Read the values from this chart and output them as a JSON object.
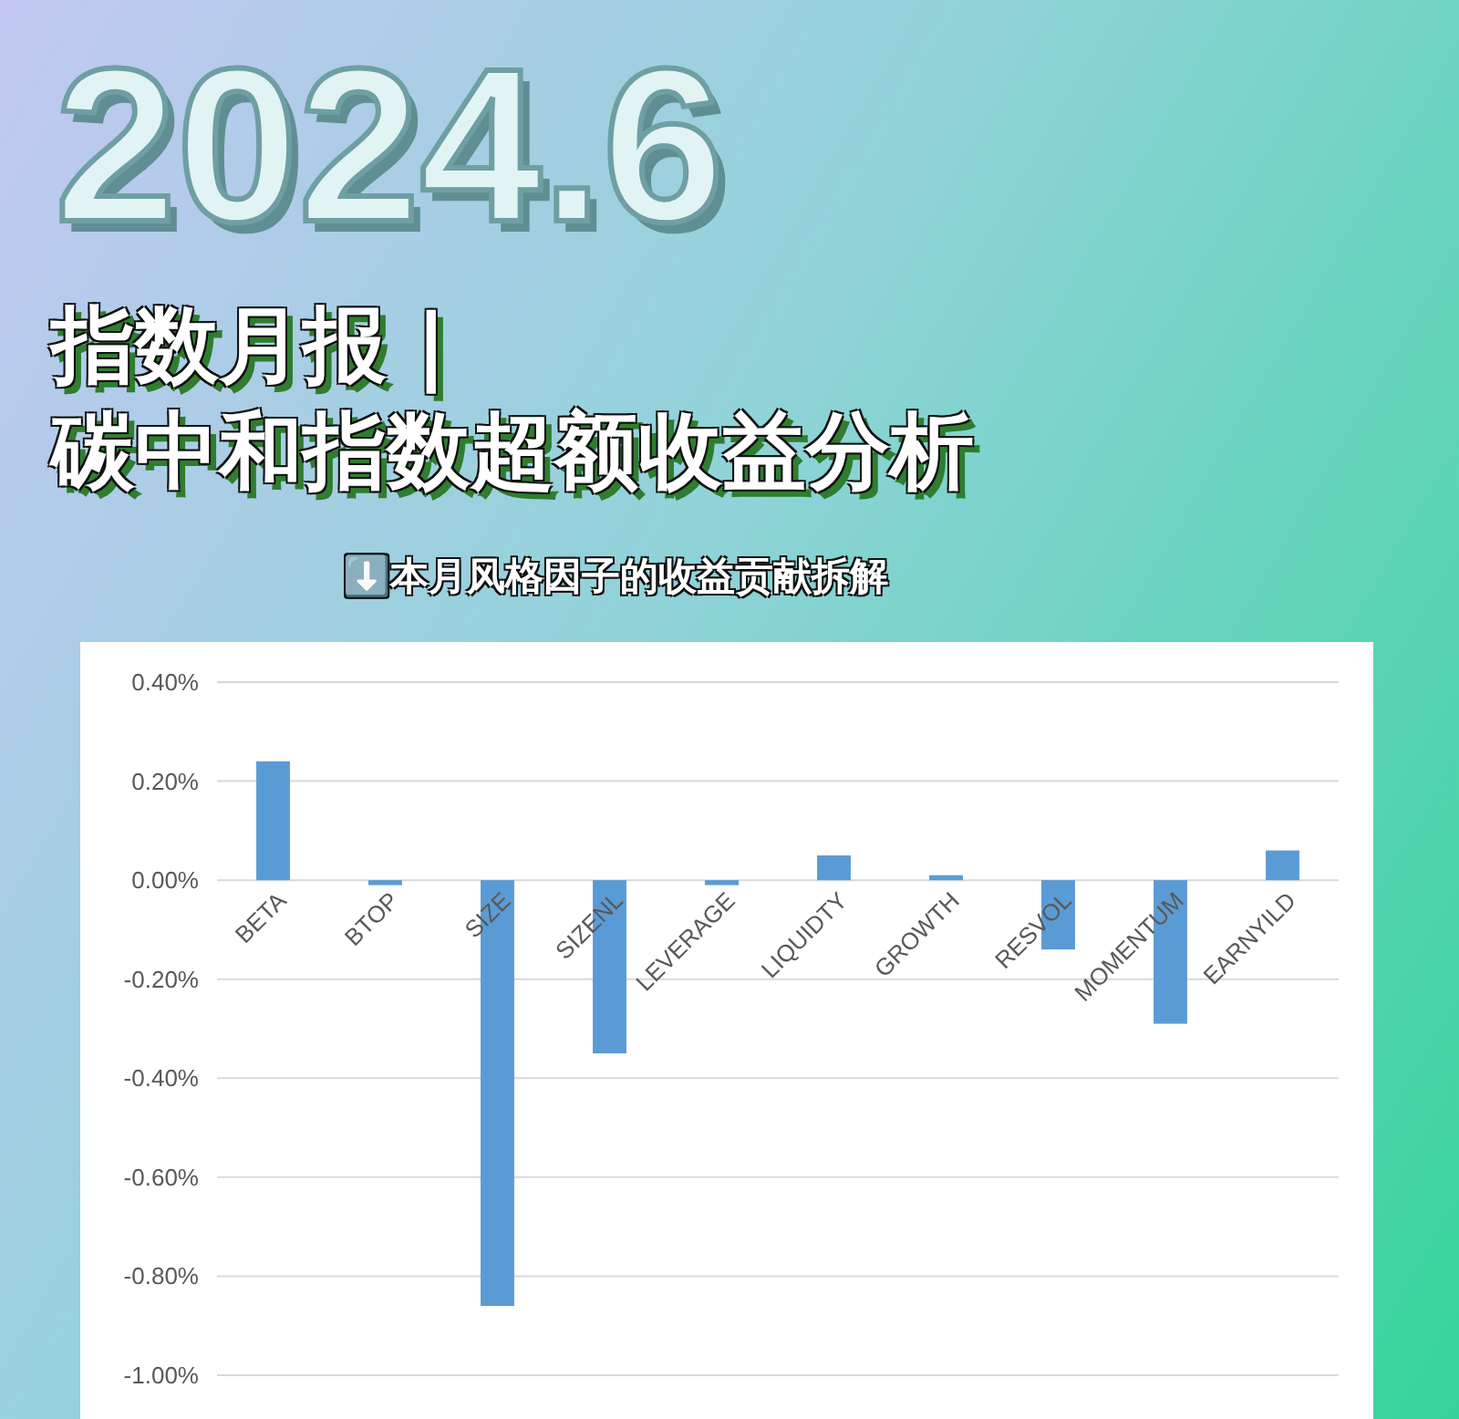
{
  "chart_data": {
    "type": "bar",
    "title": "指数月报 | 碳中和指数超额收益分析",
    "subtitle": "⬇️本月风格因子的收益贡献拆解",
    "annotations": [
      "2024.6"
    ],
    "categories": [
      "BETA",
      "BTOP",
      "SIZE",
      "SIZENL",
      "LEVERAGE",
      "LIQUIDTY",
      "GROWTH",
      "RESVOL",
      "MOMENTUM",
      "EARNYILD"
    ],
    "values": [
      0.24,
      -0.01,
      -0.86,
      -0.35,
      -0.01,
      0.05,
      0.01,
      -0.14,
      -0.29,
      0.06
    ],
    "color": "#5b9bd5",
    "ylim": [
      -1.0,
      0.4
    ],
    "yticks": [
      {
        "value": 0.4,
        "label": "0.40%"
      },
      {
        "value": 0.2,
        "label": "0.20%"
      },
      {
        "value": 0,
        "label": "0.00%"
      },
      {
        "value": -0.2,
        "label": "-0.20%"
      },
      {
        "value": -0.4,
        "label": "-0.40%"
      },
      {
        "value": -0.6,
        "label": "-0.60%"
      },
      {
        "value": -0.8,
        "label": "-0.80%"
      },
      {
        "value": -1.0,
        "label": "-1.00%"
      }
    ],
    "grid": "y"
  }
}
